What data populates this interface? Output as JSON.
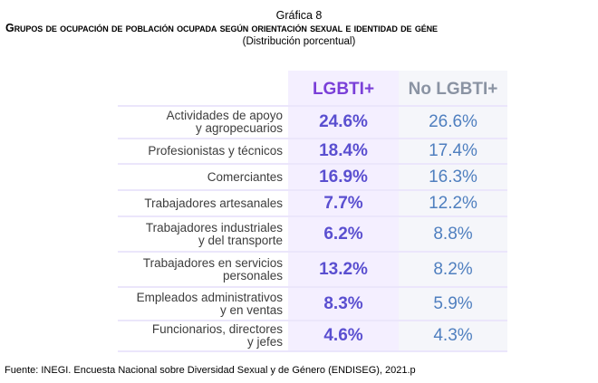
{
  "header": {
    "graphic_number": "Gráfica 8",
    "title": "Grupos de ocupación de población ocupada según orientación sexual e identidad de géne",
    "subtitle": "(Distribución porcentual)"
  },
  "chart_data": {
    "type": "table",
    "title": "Grupos de ocupación de población ocupada según orientación sexual e identidad de géne",
    "subtitle": "(Distribución porcentual)",
    "columns": [
      "LGBTI+",
      "No LGBTI+"
    ],
    "rows": [
      {
        "label": "Actividades de apoyo\ny agropecuarios",
        "lgbti": "24.6%",
        "no_lgbti": "26.6%"
      },
      {
        "label": "Profesionistas y técnicos",
        "lgbti": "18.4%",
        "no_lgbti": "17.4%"
      },
      {
        "label": "Comerciantes",
        "lgbti": "16.9%",
        "no_lgbti": "16.3%"
      },
      {
        "label": "Trabajadores artesanales",
        "lgbti": "7.7%",
        "no_lgbti": "12.2%"
      },
      {
        "label": "Trabajadores industriales\ny del transporte",
        "lgbti": "6.2%",
        "no_lgbti": "8.8%"
      },
      {
        "label": "Trabajadores en servicios\npersonales",
        "lgbti": "13.2%",
        "no_lgbti": "8.2%"
      },
      {
        "label": "Empleados administrativos\ny en ventas",
        "lgbti": "8.3%",
        "no_lgbti": "5.9%"
      },
      {
        "label": "Funcionarios, directores\ny jefes",
        "lgbti": "4.6%",
        "no_lgbti": "4.3%"
      }
    ],
    "values_lgbti": [
      24.6,
      18.4,
      16.9,
      7.7,
      6.2,
      13.2,
      8.3,
      4.6
    ],
    "values_no_lgbti": [
      26.6,
      17.4,
      16.3,
      12.2,
      8.8,
      8.2,
      5.9,
      4.3
    ]
  },
  "colors": {
    "lgbti_header": "#7a3fd8",
    "lgbti_values": "#5a4fd0",
    "no_lgbti_header": "#8a93a3",
    "no_lgbti_values": "#4f7fbf"
  },
  "footer": {
    "source": "Fuente: INEGI. Encuesta Nacional sobre Diversidad Sexual y de Género (ENDISEG), 2021.p"
  }
}
